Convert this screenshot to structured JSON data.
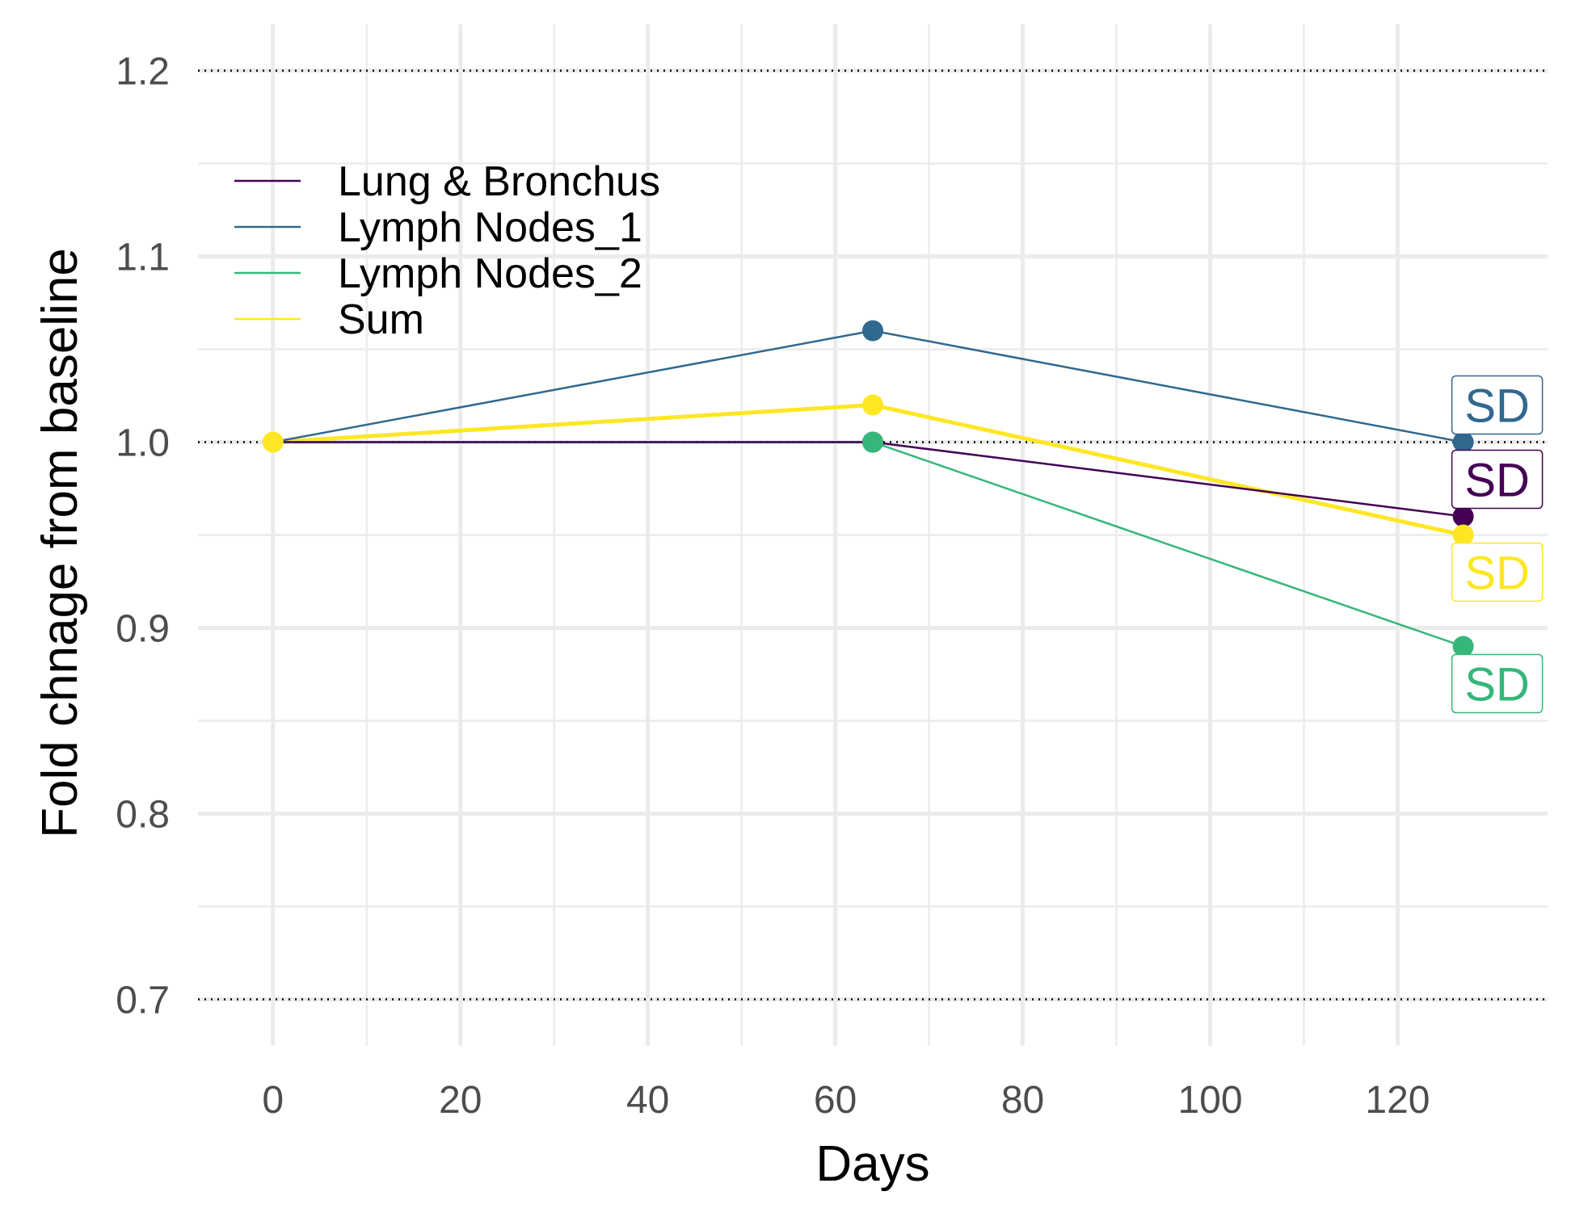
{
  "chart_data": {
    "type": "line",
    "title": "",
    "xlabel": "Days",
    "ylabel": "Fold chnage from baseline",
    "xlim": [
      -8,
      136
    ],
    "ylim": [
      0.675,
      1.225
    ],
    "x_ticks": [
      0,
      20,
      40,
      60,
      80,
      100,
      120
    ],
    "x_tick_labels": [
      "0",
      "20",
      "40",
      "60",
      "80",
      "100",
      "120"
    ],
    "y_ticks": [
      0.7,
      0.8,
      0.9,
      1.0,
      1.1,
      1.2
    ],
    "y_tick_labels": [
      "0.7",
      "0.8",
      "0.9",
      "1.0",
      "1.1",
      "1.2"
    ],
    "reference_lines_y": [
      0.7,
      1.0,
      1.2
    ],
    "grid": true,
    "legend_position": "top-left",
    "series": [
      {
        "name": "Lung & Bronchus",
        "color": "#440154",
        "line_width": "thin",
        "x": [
          0,
          64,
          127
        ],
        "y": [
          1.0,
          1.0,
          0.96
        ],
        "end_label": "SD",
        "end_label_y": 0.98
      },
      {
        "name": "Lymph Nodes_1",
        "color": "#31688e",
        "line_width": "thin",
        "x": [
          0,
          64,
          127
        ],
        "y": [
          1.0,
          1.06,
          1.0
        ],
        "end_label": "SD",
        "end_label_y": 1.02
      },
      {
        "name": "Lymph Nodes_2",
        "color": "#35b779",
        "line_width": "thin",
        "x": [
          0,
          64,
          127
        ],
        "y": [
          1.0,
          1.0,
          0.89
        ],
        "end_label": "SD",
        "end_label_y": 0.87
      },
      {
        "name": "Sum",
        "color": "#fde725",
        "line_width": "thick",
        "x": [
          0,
          64,
          127
        ],
        "y": [
          1.0,
          1.02,
          0.95
        ],
        "end_label": "SD",
        "end_label_y": 0.93
      }
    ]
  }
}
